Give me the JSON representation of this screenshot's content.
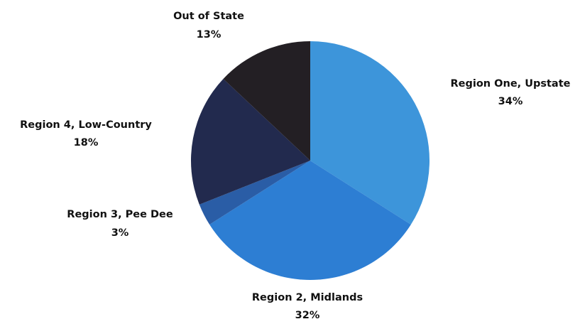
{
  "chart_data": {
    "type": "pie",
    "title": "",
    "start": "12 o'clock",
    "direction": "clockwise",
    "slices": [
      {
        "label": "Region One, Upstate",
        "percent_label": "34%",
        "value": 34,
        "color": "#3d95da"
      },
      {
        "label": "Region 2, Midlands",
        "percent_label": "32%",
        "value": 32,
        "color": "#2d7ed3"
      },
      {
        "label": "Region 3, Pee Dee",
        "percent_label": "3%",
        "value": 3,
        "color": "#2a5da6"
      },
      {
        "label": "Region 4, Low-Country",
        "percent_label": "18%",
        "value": 18,
        "color": "#222a4e"
      },
      {
        "label": "Out of State",
        "percent_label": "13%",
        "value": 13,
        "color": "#231f24"
      }
    ]
  }
}
